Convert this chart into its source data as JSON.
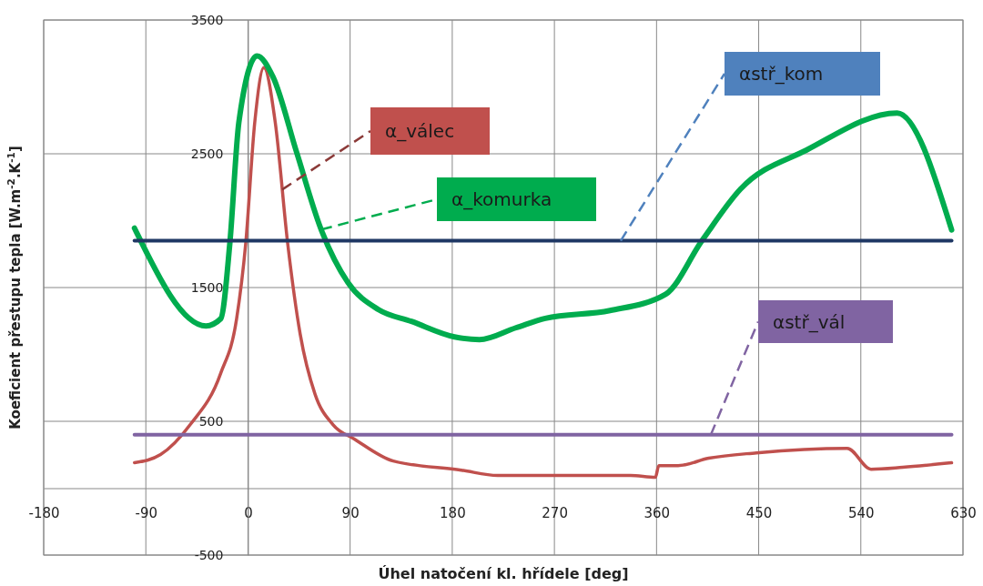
{
  "chart_data": {
    "type": "line",
    "xlabel": "Úhel natočení kl. hřídele [deg]",
    "ylabel": "Koeficient přestupu tepla [W.m$^{-2}$.K$^{-1}$]",
    "xlim": [
      -180,
      630
    ],
    "xticks": [
      -180,
      -90,
      0,
      90,
      180,
      270,
      360,
      450,
      540,
      630
    ],
    "ylim": [
      -500,
      3500
    ],
    "yticks": [
      -500,
      500,
      1500,
      2500,
      3500
    ],
    "grid": true,
    "marker": "none",
    "line_style": "solid",
    "series": [
      {
        "name": "α_válec",
        "color": "#c0504d",
        "x": [
          -100,
          -77,
          -51,
          -24,
          -10,
          -2,
          6,
          14,
          24,
          35,
          46,
          59,
          75,
          94,
          128,
          188,
          220,
          337,
          359,
          362,
          379,
          406,
          448,
          528,
          549,
          577,
          620
        ],
        "values": [
          190,
          251,
          474,
          860,
          1267,
          1829,
          2737,
          3144,
          2737,
          1829,
          1152,
          705,
          474,
          366,
          203,
          135,
          95,
          95,
          81,
          169,
          169,
          224,
          264,
          298,
          142,
          156,
          190
        ]
      },
      {
        "name": "α_komurka",
        "color": "#00ac4e",
        "x": [
          -100,
          -37,
          -24,
          -16,
          -8,
          8,
          22,
          43,
          64,
          88,
          115,
          144,
          182,
          204,
          236,
          262,
          319,
          368,
          400,
          434,
          492,
          572,
          620
        ],
        "values": [
          1944,
          1213,
          1267,
          1829,
          2737,
          3232,
          3076,
          2507,
          1944,
          1538,
          1335,
          1247,
          1131,
          1111,
          1199,
          1270,
          1328,
          1450,
          1850,
          2236,
          2527,
          2805,
          1931
        ]
      },
      {
        "name": "αstř_kom",
        "color": "#1f3864",
        "x": [
          -100,
          620
        ],
        "values": [
          1850,
          1850
        ]
      },
      {
        "name": "αstř_vál",
        "color": "#8064a2",
        "x": [
          -100,
          620
        ],
        "values": [
          400,
          400
        ]
      }
    ]
  }
}
